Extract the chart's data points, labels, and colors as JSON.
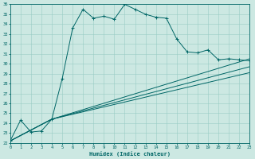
{
  "xlabel": "Humidex (Indice chaleur)",
  "bg_color": "#cce8e2",
  "line_color": "#006666",
  "grid_color": "#99ccc4",
  "ylim": [
    22,
    36
  ],
  "xlim": [
    0,
    23
  ],
  "yticks": [
    22,
    23,
    24,
    25,
    26,
    27,
    28,
    29,
    30,
    31,
    32,
    33,
    34,
    35,
    36
  ],
  "xticks": [
    0,
    1,
    2,
    3,
    4,
    5,
    6,
    7,
    8,
    9,
    10,
    11,
    12,
    13,
    14,
    15,
    16,
    17,
    18,
    19,
    20,
    21,
    22,
    23
  ],
  "line1_x": [
    0,
    1,
    2,
    3,
    4,
    5,
    6,
    7,
    8,
    9,
    10,
    11,
    12,
    13,
    14,
    15,
    16,
    17,
    18,
    19,
    20,
    21,
    22,
    23
  ],
  "line1_y": [
    22.2,
    24.3,
    23.1,
    23.2,
    24.4,
    28.5,
    33.6,
    35.5,
    34.6,
    34.8,
    34.5,
    36.0,
    35.5,
    35.0,
    34.7,
    34.6,
    32.5,
    31.2,
    31.1,
    31.4,
    30.4,
    30.5,
    30.4,
    30.3
  ],
  "line2_x": [
    0,
    4,
    23
  ],
  "line2_y": [
    22.2,
    24.4,
    30.5
  ],
  "line3_x": [
    0,
    4,
    23
  ],
  "line3_y": [
    22.2,
    24.4,
    29.7
  ],
  "line4_x": [
    0,
    4,
    23
  ],
  "line4_y": [
    22.2,
    24.4,
    29.1
  ]
}
